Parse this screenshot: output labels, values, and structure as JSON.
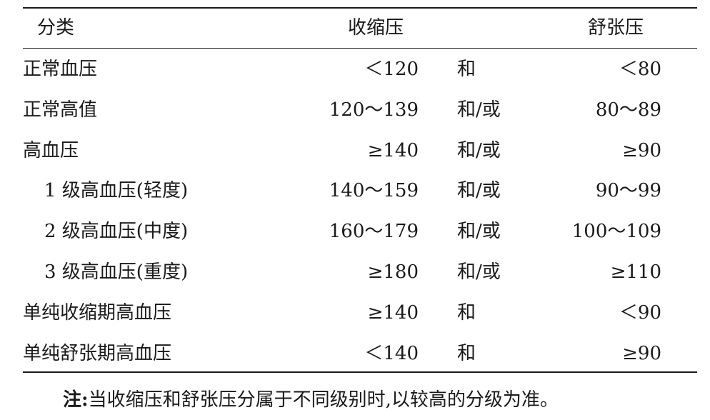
{
  "table": {
    "headers": {
      "category": "分类",
      "systolic": "收缩压",
      "diastolic": "舒张压"
    },
    "rows": [
      {
        "category": "正常血压",
        "systolic": "＜120",
        "conj": "和",
        "diastolic": "＜80",
        "indent": false
      },
      {
        "category": "正常高值",
        "systolic": "120～139",
        "conj": "和/或",
        "diastolic": "80～89",
        "indent": false
      },
      {
        "category": "高血压",
        "systolic": "≥140",
        "conj": "和/或",
        "diastolic": "≥90",
        "indent": false
      },
      {
        "category": "1 级高血压(轻度)",
        "systolic": "140～159",
        "conj": "和/或",
        "diastolic": "90～99",
        "indent": true
      },
      {
        "category": "2 级高血压(中度)",
        "systolic": "160～179",
        "conj": "和/或",
        "diastolic": "100～109",
        "indent": true
      },
      {
        "category": "3 级高血压(重度)",
        "systolic": "≥180",
        "conj": "和/或",
        "diastolic": "≥110",
        "indent": true
      },
      {
        "category": "单纯收缩期高血压",
        "systolic": "≥140",
        "conj": "和",
        "diastolic": "＜90",
        "indent": false
      },
      {
        "category": "单纯舒张期高血压",
        "systolic": "＜140",
        "conj": "和",
        "diastolic": "≥90",
        "indent": false
      }
    ]
  },
  "note": {
    "label": "注:",
    "text": "当收缩压和舒张压分属于不同级别时,以较高的分级为准。"
  }
}
